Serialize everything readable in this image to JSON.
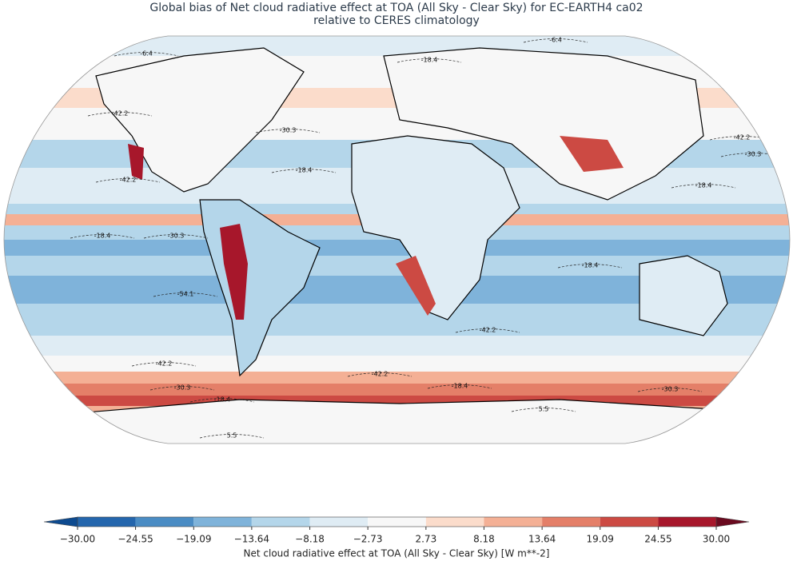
{
  "map": {
    "title": [
      "Global bias of Net cloud radiative effect at TOA (All Sky - Clear Sky) for EC-EARTH4 ca02",
      "relative to CERES climatology"
    ],
    "colorbar": {
      "label": "Net cloud radiative effect at TOA (All Sky - Clear Sky) [W m**-2]",
      "clim": [
        -30,
        30
      ],
      "extend": "both",
      "colors": [
        "#0d4a8f",
        "#2466ad",
        "#4a8cc4",
        "#7fb3da",
        "#b4d6ea",
        "#dfecf4",
        "#f7f7f7",
        "#fbdccb",
        "#f4b095",
        "#e47f68",
        "#cc4a43",
        "#a7172b",
        "#6a0a1f"
      ],
      "ticks": [
        {
          "value": -30.0,
          "label": "−30.00"
        },
        {
          "value": -24.55,
          "label": "−24.55"
        },
        {
          "value": -19.09,
          "label": "−19.09"
        },
        {
          "value": -13.64,
          "label": "−13.64"
        },
        {
          "value": -8.18,
          "label": "−8.18"
        },
        {
          "value": -2.73,
          "label": "−2.73"
        },
        {
          "value": 2.73,
          "label": "2.73"
        },
        {
          "value": 8.18,
          "label": "8.18"
        },
        {
          "value": 13.64,
          "label": "13.64"
        },
        {
          "value": 19.09,
          "label": "19.09"
        },
        {
          "value": 24.55,
          "label": "24.55"
        },
        {
          "value": 30.0,
          "label": "30.00"
        }
      ]
    },
    "contour_labels": [
      -6.4,
      -18.4,
      -42.2,
      -30.3,
      -18.4,
      -42.2,
      -18.4,
      -30.3,
      -54.1,
      -42.2,
      -42.2,
      -30.3,
      -18.4,
      5.5,
      5.5,
      -18.4,
      -30.3,
      -42.2,
      -18.4,
      -6.4,
      -42.2,
      -30.3,
      -18.4
    ]
  }
}
